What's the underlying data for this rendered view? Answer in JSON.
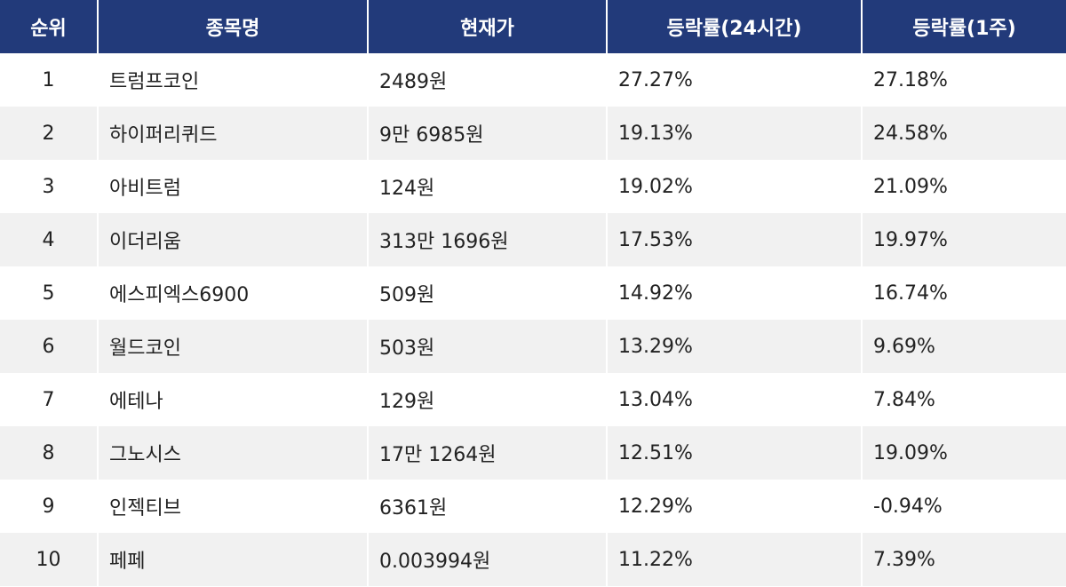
{
  "header": {
    "rank": "순위",
    "name": "종목명",
    "price": "현재가",
    "change_24h": "등락률(24시간)",
    "change_1w": "등락률(1주)"
  },
  "rows": [
    {
      "rank": "1",
      "name": "트럼프코인",
      "price": "2489원",
      "change_24h": "27.27%",
      "change_1w": "27.18%"
    },
    {
      "rank": "2",
      "name": "하이퍼리퀴드",
      "price": "9만 6985원",
      "change_24h": "19.13%",
      "change_1w": "24.58%"
    },
    {
      "rank": "3",
      "name": "아비트럼",
      "price": "124원",
      "change_24h": "19.02%",
      "change_1w": "21.09%"
    },
    {
      "rank": "4",
      "name": "이더리움",
      "price": "313만 1696원",
      "change_24h": "17.53%",
      "change_1w": "19.97%"
    },
    {
      "rank": "5",
      "name": "에스피엑스6900",
      "price": "509원",
      "change_24h": "14.92%",
      "change_1w": "16.74%"
    },
    {
      "rank": "6",
      "name": "월드코인",
      "price": "503원",
      "change_24h": "13.29%",
      "change_1w": "9.69%"
    },
    {
      "rank": "7",
      "name": "에테나",
      "price": "129원",
      "change_24h": "13.04%",
      "change_1w": "7.84%"
    },
    {
      "rank": "8",
      "name": "그노시스",
      "price": "17만 1264원",
      "change_24h": "12.51%",
      "change_1w": "19.09%"
    },
    {
      "rank": "9",
      "name": "인젝티브",
      "price": "6361원",
      "change_24h": "12.29%",
      "change_1w": "-0.94%"
    },
    {
      "rank": "10",
      "name": "페페",
      "price": "0.003994원",
      "change_24h": "11.22%",
      "change_1w": "7.39%"
    }
  ],
  "colors": {
    "header_bg": "#223a7a",
    "header_text": "#ffffff",
    "row_alt_bg": "#f1f1f1"
  }
}
